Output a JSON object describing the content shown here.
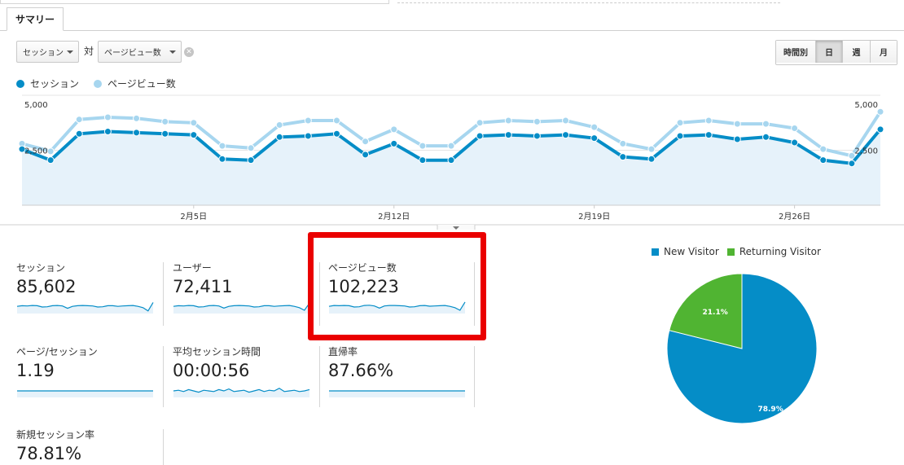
{
  "tabs": [
    {
      "label": "サマリー",
      "active": true
    }
  ],
  "controls": {
    "metric1": "セッション",
    "vs_label": "対",
    "metric2": "ページビュー数",
    "time_buttons": [
      {
        "label": "時間別",
        "active": false
      },
      {
        "label": "日",
        "active": true
      },
      {
        "label": "週",
        "active": false
      },
      {
        "label": "月",
        "active": false
      }
    ]
  },
  "legend": {
    "series1": "セッション",
    "series2": "ページビュー数"
  },
  "colors": {
    "sessions": "#058dc7",
    "pageviews": "#a7d6ef",
    "new_visitor": "#058dc7",
    "returning_visitor": "#50b432",
    "highlight": "#ea0000"
  },
  "chart_data": [
    {
      "type": "line",
      "ylim": [
        0,
        5000
      ],
      "y_ticks_left": [
        "5,000",
        "2,500"
      ],
      "y_ticks_right": [
        "5,000",
        "2,500"
      ],
      "x_tick_labels": [
        {
          "index": 6,
          "label": "2月5日"
        },
        {
          "index": 13,
          "label": "2月12日"
        },
        {
          "index": 20,
          "label": "2月19日"
        },
        {
          "index": 27,
          "label": "2月26日"
        }
      ],
      "series": [
        {
          "name": "セッション",
          "values": [
            2550,
            2050,
            3250,
            3350,
            3300,
            3250,
            3200,
            2100,
            2050,
            3100,
            3150,
            3250,
            2300,
            2800,
            2050,
            2050,
            3150,
            3200,
            3150,
            3200,
            3050,
            2200,
            2100,
            3150,
            3200,
            3000,
            3100,
            2850,
            2050,
            1900,
            3450
          ]
        },
        {
          "name": "ページビュー数",
          "values": [
            2800,
            2450,
            3900,
            4000,
            3950,
            3800,
            3750,
            2700,
            2600,
            3650,
            3850,
            3850,
            2900,
            3450,
            2700,
            2700,
            3750,
            3850,
            3800,
            3850,
            3550,
            2800,
            2550,
            3750,
            3850,
            3700,
            3700,
            3500,
            2550,
            2250,
            4250
          ]
        }
      ]
    },
    {
      "type": "pie",
      "labels": [
        "New Visitor",
        "Returning Visitor"
      ],
      "values": [
        78.9,
        21.1
      ],
      "value_labels": [
        "78.9%",
        "21.1%"
      ]
    }
  ],
  "metrics": [
    {
      "label": "セッション",
      "value": "85,602",
      "spark": [
        0.55,
        0.6,
        0.58,
        0.62,
        0.6,
        0.5,
        0.52,
        0.6,
        0.62,
        0.58,
        0.4,
        0.55,
        0.6,
        0.62,
        0.6,
        0.58,
        0.5,
        0.52,
        0.6,
        0.6,
        0.55,
        0.58,
        0.6,
        0.62,
        0.55,
        0.45,
        0.2,
        0.85
      ]
    },
    {
      "label": "ユーザー",
      "value": "72,411",
      "spark": [
        0.55,
        0.6,
        0.58,
        0.62,
        0.6,
        0.5,
        0.52,
        0.6,
        0.62,
        0.58,
        0.42,
        0.55,
        0.6,
        0.62,
        0.6,
        0.58,
        0.5,
        0.52,
        0.6,
        0.6,
        0.55,
        0.58,
        0.6,
        0.62,
        0.55,
        0.45,
        0.25,
        0.8
      ]
    },
    {
      "label": "ページビュー数",
      "value": "102,223",
      "spark": [
        0.55,
        0.62,
        0.6,
        0.62,
        0.6,
        0.5,
        0.52,
        0.62,
        0.64,
        0.58,
        0.42,
        0.58,
        0.62,
        0.62,
        0.6,
        0.58,
        0.5,
        0.52,
        0.6,
        0.62,
        0.56,
        0.58,
        0.6,
        0.62,
        0.55,
        0.45,
        0.25,
        0.88
      ]
    },
    {
      "label": "ページ/セッション",
      "value": "1.19",
      "spark": [
        0.5,
        0.5,
        0.5,
        0.5,
        0.5,
        0.5,
        0.5,
        0.5,
        0.5,
        0.5,
        0.5,
        0.5,
        0.5,
        0.5,
        0.5,
        0.5,
        0.5,
        0.5,
        0.5,
        0.5,
        0.5,
        0.5,
        0.5,
        0.5,
        0.5,
        0.5,
        0.5,
        0.5
      ]
    },
    {
      "label": "平均セッション時間",
      "value": "00:00:56",
      "spark": [
        0.5,
        0.55,
        0.45,
        0.6,
        0.5,
        0.4,
        0.55,
        0.5,
        0.45,
        0.6,
        0.5,
        0.65,
        0.45,
        0.5,
        0.55,
        0.4,
        0.5,
        0.6,
        0.45,
        0.55,
        0.5,
        0.7,
        0.45,
        0.5,
        0.55,
        0.45,
        0.5,
        0.6
      ]
    },
    {
      "label": "直帰率",
      "value": "87.66%",
      "spark": [
        0.5,
        0.5,
        0.5,
        0.5,
        0.5,
        0.5,
        0.5,
        0.5,
        0.5,
        0.5,
        0.5,
        0.5,
        0.5,
        0.5,
        0.5,
        0.5,
        0.5,
        0.5,
        0.5,
        0.5,
        0.5,
        0.5,
        0.5,
        0.5,
        0.5,
        0.5,
        0.5,
        0.5
      ]
    },
    {
      "label": "新規セッション率",
      "value": "78.81%"
    }
  ]
}
